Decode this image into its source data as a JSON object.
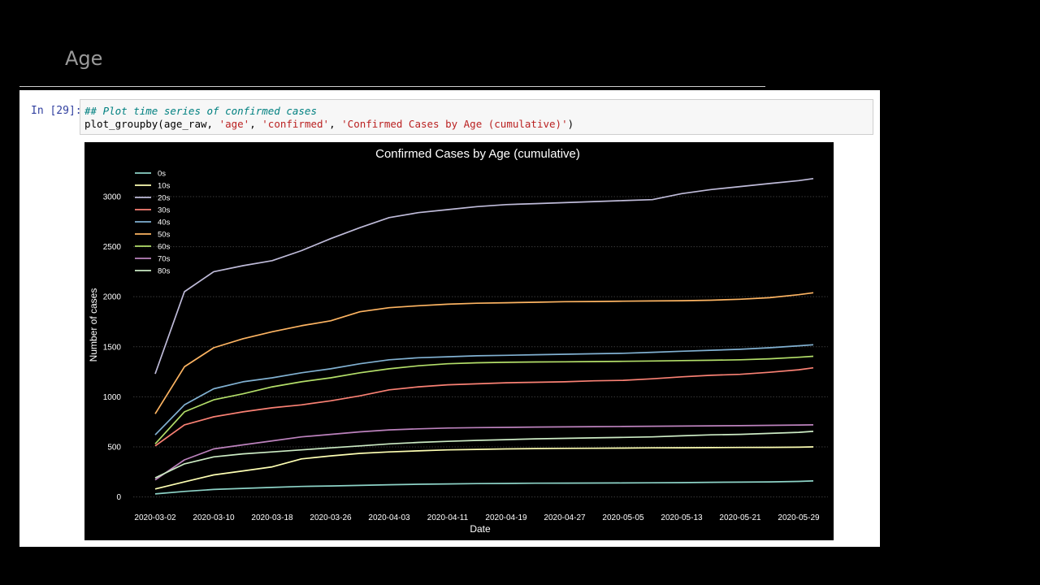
{
  "page": {
    "heading": "Age"
  },
  "cell": {
    "prompt": "In [29]:",
    "comment": "## Plot time series of confirmed cases",
    "code_func": "plot_groupby(age_raw, ",
    "code_arg1": "'age'",
    "code_sep1": ", ",
    "code_arg2": "'confirmed'",
    "code_sep2": ", ",
    "code_arg3": "'Confirmed Cases by Age (cumulative)'",
    "code_end": ")"
  },
  "chart_data": {
    "type": "line",
    "title": "Confirmed Cases by Age (cumulative)",
    "xlabel": "Date",
    "ylabel": "Number of cases",
    "ylim": [
      -60,
      3300
    ],
    "yticks": [
      0,
      500,
      1000,
      1500,
      2000,
      2500,
      3000
    ],
    "xticks": [
      "2020-03-02",
      "2020-03-10",
      "2020-03-18",
      "2020-03-26",
      "2020-04-03",
      "2020-04-11",
      "2020-04-19",
      "2020-04-27",
      "2020-05-05",
      "2020-05-13",
      "2020-05-21",
      "2020-05-29"
    ],
    "grid": "y dotted",
    "legend_position": "top-left",
    "x": [
      "2020-03-02",
      "2020-03-06",
      "2020-03-10",
      "2020-03-14",
      "2020-03-18",
      "2020-03-22",
      "2020-03-26",
      "2020-03-30",
      "2020-04-03",
      "2020-04-07",
      "2020-04-11",
      "2020-04-15",
      "2020-04-19",
      "2020-04-23",
      "2020-04-27",
      "2020-05-01",
      "2020-05-05",
      "2020-05-09",
      "2020-05-13",
      "2020-05-17",
      "2020-05-21",
      "2020-05-25",
      "2020-05-29",
      "2020-05-31"
    ],
    "series": [
      {
        "name": "0s",
        "color": "#8dd3c7",
        "values": [
          30,
          55,
          75,
          85,
          95,
          105,
          110,
          115,
          122,
          127,
          130,
          133,
          135,
          137,
          138,
          139,
          140,
          141,
          143,
          146,
          148,
          150,
          155,
          160
        ]
      },
      {
        "name": "10s",
        "color": "#feffb3",
        "values": [
          80,
          150,
          220,
          260,
          300,
          380,
          410,
          435,
          450,
          460,
          470,
          475,
          480,
          483,
          485,
          486,
          488,
          490,
          491,
          493,
          494,
          495,
          497,
          500
        ]
      },
      {
        "name": "20s",
        "color": "#bfbbd9",
        "values": [
          1230,
          2050,
          2250,
          2310,
          2360,
          2460,
          2580,
          2690,
          2790,
          2840,
          2870,
          2900,
          2920,
          2930,
          2940,
          2950,
          2960,
          2970,
          3030,
          3070,
          3100,
          3130,
          3160,
          3180
        ]
      },
      {
        "name": "30s",
        "color": "#fa8174",
        "values": [
          510,
          720,
          800,
          850,
          890,
          920,
          960,
          1010,
          1070,
          1100,
          1120,
          1130,
          1140,
          1145,
          1150,
          1160,
          1165,
          1180,
          1200,
          1215,
          1225,
          1245,
          1270,
          1290
        ]
      },
      {
        "name": "40s",
        "color": "#81b1d2",
        "values": [
          620,
          920,
          1080,
          1150,
          1190,
          1240,
          1280,
          1330,
          1370,
          1390,
          1400,
          1410,
          1415,
          1420,
          1425,
          1430,
          1435,
          1445,
          1455,
          1465,
          1475,
          1490,
          1510,
          1520
        ]
      },
      {
        "name": "50s",
        "color": "#fdb462",
        "values": [
          830,
          1300,
          1490,
          1580,
          1650,
          1710,
          1760,
          1850,
          1890,
          1910,
          1925,
          1935,
          1940,
          1945,
          1950,
          1952,
          1955,
          1958,
          1960,
          1965,
          1975,
          1990,
          2020,
          2040
        ]
      },
      {
        "name": "60s",
        "color": "#b3de69",
        "values": [
          530,
          850,
          970,
          1030,
          1100,
          1150,
          1190,
          1240,
          1280,
          1310,
          1330,
          1340,
          1345,
          1348,
          1350,
          1352,
          1355,
          1358,
          1362,
          1365,
          1370,
          1380,
          1395,
          1405
        ]
      },
      {
        "name": "70s",
        "color": "#bc82bd",
        "values": [
          170,
          370,
          480,
          520,
          560,
          600,
          625,
          650,
          670,
          680,
          688,
          692,
          695,
          698,
          700,
          702,
          704,
          706,
          708,
          710,
          712,
          715,
          718,
          720
        ]
      },
      {
        "name": "80s",
        "color": "#ccebc4",
        "values": [
          190,
          330,
          400,
          430,
          450,
          470,
          490,
          510,
          530,
          545,
          555,
          565,
          572,
          580,
          585,
          590,
          595,
          600,
          610,
          620,
          625,
          635,
          645,
          655
        ]
      }
    ]
  }
}
